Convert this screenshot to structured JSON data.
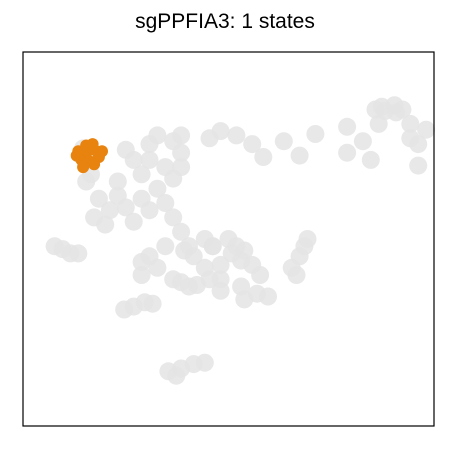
{
  "chart_data": {
    "type": "scatter",
    "title": "sgPPFIA3: 1 states",
    "xlabel": "",
    "ylabel": "",
    "axes_ticks": false,
    "grid": false,
    "legend": "none",
    "colors": {
      "background": "#e4e4e4",
      "highlight": "#e8830f",
      "frame": "#000000"
    },
    "series": [
      {
        "role": "background-cells",
        "color": "#e4e4e4",
        "points": [
          [
            0.93,
            0.9
          ],
          [
            0.97,
            0.92
          ],
          [
            1.05,
            0.93
          ],
          [
            1.1,
            0.9
          ],
          [
            1.06,
            0.88
          ],
          [
            0.99,
            0.89
          ],
          [
            0.15,
            0.66
          ],
          [
            0.35,
            0.68
          ],
          [
            0.55,
            0.73
          ],
          [
            0.75,
            0.78
          ],
          [
            0.95,
            0.8
          ],
          [
            1.15,
            0.8
          ],
          [
            1.25,
            0.76
          ],
          [
            1.2,
            0.66
          ],
          [
            0.75,
            0.6
          ],
          [
            0.45,
            0.58
          ],
          [
            0.22,
            0.57
          ],
          [
            0.9,
            0.55
          ],
          [
            1.2,
            0.51
          ],
          [
            1.15,
            0.7
          ],
          [
            0.85,
            0.68
          ],
          [
            0.05,
            0.72
          ],
          [
            -0.05,
            0.75
          ],
          [
            -0.12,
            0.7
          ],
          [
            -0.3,
            0.72
          ],
          [
            -0.5,
            0.66
          ],
          [
            -0.45,
            0.72
          ],
          [
            -0.35,
            0.68
          ],
          [
            -0.3,
            0.6
          ],
          [
            -0.3,
            0.5
          ],
          [
            -0.35,
            0.42
          ],
          [
            -0.45,
            0.35
          ],
          [
            -0.55,
            0.28
          ],
          [
            -0.65,
            0.22
          ],
          [
            -0.75,
            0.2
          ],
          [
            -0.82,
            0.28
          ],
          [
            -0.87,
            0.45
          ],
          [
            -0.93,
            0.58
          ],
          [
            -0.92,
            0.63
          ],
          [
            -0.9,
            0.4
          ],
          [
            -0.85,
            0.15
          ],
          [
            -0.78,
            0.1
          ],
          [
            -0.6,
            0.12
          ],
          [
            -0.5,
            0.2
          ],
          [
            -0.4,
            0.25
          ],
          [
            -0.55,
            0.45
          ],
          [
            -0.6,
            0.55
          ],
          [
            -0.7,
            0.4
          ],
          [
            -0.7,
            0.3
          ],
          [
            -0.65,
            0.62
          ],
          [
            -0.5,
            0.55
          ],
          [
            -0.4,
            0.5
          ],
          [
            -0.35,
            0.15
          ],
          [
            -0.3,
            0.05
          ],
          [
            -0.25,
            -0.05
          ],
          [
            -0.28,
            -0.08
          ],
          [
            -0.22,
            -0.12
          ],
          [
            -0.15,
            -0.2
          ],
          [
            -0.05,
            -0.28
          ],
          [
            0.08,
            -0.33
          ],
          [
            0.18,
            -0.38
          ],
          [
            0.25,
            -0.4
          ],
          [
            0.1,
            -0.42
          ],
          [
            -0.05,
            -0.36
          ],
          [
            -0.12,
            -0.28
          ],
          [
            -0.15,
            0.0
          ],
          [
            -0.1,
            -0.05
          ],
          [
            0.0,
            0.0
          ],
          [
            0.1,
            -0.08
          ],
          [
            0.15,
            -0.18
          ],
          [
            0.08,
            -0.15
          ],
          [
            0.02,
            -0.1
          ],
          [
            -0.3,
            -0.3
          ],
          [
            -0.25,
            -0.33
          ],
          [
            -0.2,
            -0.32
          ],
          [
            -0.35,
            -0.28
          ],
          [
            -0.05,
            -0.18
          ],
          [
            0.2,
            -0.25
          ],
          [
            -0.5,
            -0.12
          ],
          [
            -0.45,
            -0.2
          ],
          [
            -0.55,
            -0.25
          ],
          [
            -0.55,
            -0.16
          ],
          [
            -0.4,
            -0.05
          ],
          [
            0.4,
            -0.2
          ],
          [
            0.45,
            -0.12
          ],
          [
            0.48,
            -0.05
          ],
          [
            0.5,
            0.0
          ],
          [
            0.43,
            -0.25
          ],
          [
            -1.1,
            -0.05
          ],
          [
            -1.05,
            -0.07
          ],
          [
            -1.0,
            -0.1
          ],
          [
            -0.95,
            -0.1
          ],
          [
            -0.48,
            -0.45
          ],
          [
            -0.53,
            -0.44
          ],
          [
            -0.6,
            -0.47
          ],
          [
            -0.66,
            -0.49
          ],
          [
            -0.1,
            -0.05
          ],
          [
            0.05,
            -0.05
          ],
          [
            -0.38,
            -0.92
          ],
          [
            -0.3,
            -0.9
          ],
          [
            -0.22,
            -0.87
          ],
          [
            -0.15,
            -0.86
          ],
          [
            -0.33,
            -0.95
          ]
        ]
      },
      {
        "role": "highlighted-state",
        "name": "",
        "color": "#e8830f",
        "points": [
          [
            -0.95,
            0.61
          ],
          [
            -0.9,
            0.6
          ],
          [
            -0.85,
            0.62
          ],
          [
            -0.93,
            0.55
          ],
          [
            -0.88,
            0.54
          ],
          [
            -0.82,
            0.57
          ],
          [
            -0.9,
            0.65
          ],
          [
            -0.86,
            0.66
          ],
          [
            -0.96,
            0.58
          ],
          [
            -0.85,
            0.52
          ],
          [
            -0.8,
            0.61
          ],
          [
            -0.92,
            0.5
          ]
        ]
      }
    ],
    "xlim": [
      -1.3,
      1.3
    ],
    "ylim": [
      -1.3,
      1.3
    ]
  }
}
